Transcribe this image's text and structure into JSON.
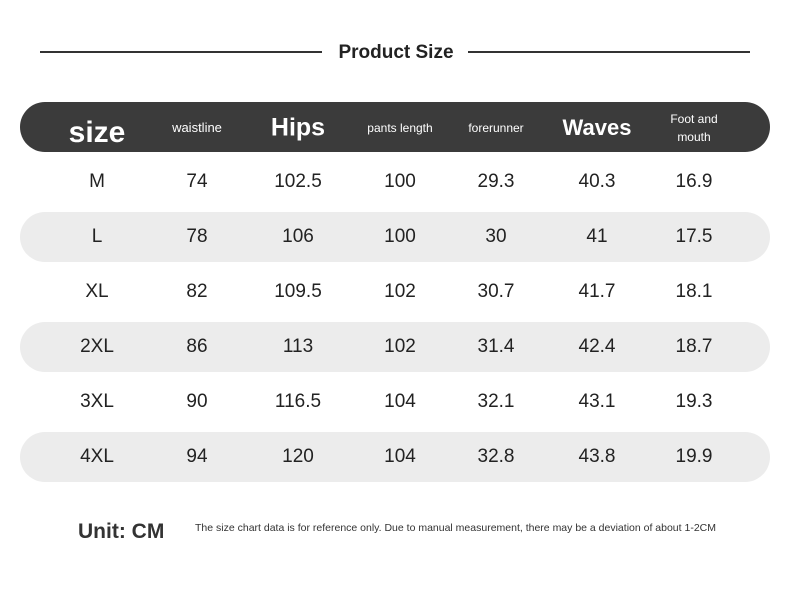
{
  "header": {
    "title": "Product Size"
  },
  "table": {
    "columns": [
      "size",
      "waistline",
      "Hips",
      "pants length",
      "forerunner",
      "Waves",
      "Foot and mouth"
    ],
    "rows": [
      [
        "M",
        "74",
        "102.5",
        "100",
        "29.3",
        "40.3",
        "16.9"
      ],
      [
        "L",
        "78",
        "106",
        "100",
        "30",
        "41",
        "17.5"
      ],
      [
        "XL",
        "82",
        "109.5",
        "102",
        "30.7",
        "41.7",
        "18.1"
      ],
      [
        "2XL",
        "86",
        "113",
        "102",
        "31.4",
        "42.4",
        "18.7"
      ],
      [
        "3XL",
        "90",
        "116.5",
        "104",
        "32.1",
        "43.1",
        "19.3"
      ],
      [
        "4XL",
        "94",
        "120",
        "104",
        "32.8",
        "43.8",
        "19.9"
      ]
    ]
  },
  "footer": {
    "unit": "Unit: CM",
    "note": "The size chart data is for reference only. Due to manual measurement, there may be a deviation of about 1-2CM"
  }
}
